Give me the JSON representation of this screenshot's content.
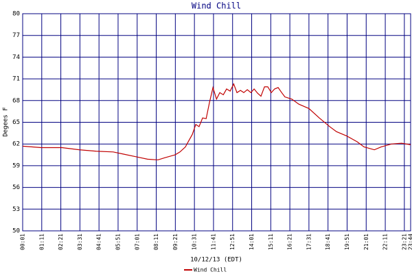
{
  "chart_data": {
    "type": "line",
    "title": "Wind Chill",
    "x_label": "10/12/13 (EDT)",
    "y_label": "Degees F",
    "xlim": [
      1,
      1424
    ],
    "ylim": [
      50,
      80
    ],
    "yticks": [
      50,
      53,
      56,
      59,
      62,
      65,
      68,
      71,
      74,
      77,
      80
    ],
    "xticks": [
      {
        "value": 1,
        "label": "00:01"
      },
      {
        "value": 71,
        "label": "01:11"
      },
      {
        "value": 141,
        "label": "02:21"
      },
      {
        "value": 211,
        "label": "03:31"
      },
      {
        "value": 281,
        "label": "04:41"
      },
      {
        "value": 351,
        "label": "05:51"
      },
      {
        "value": 421,
        "label": "07:01"
      },
      {
        "value": 491,
        "label": "08:11"
      },
      {
        "value": 561,
        "label": "09:21"
      },
      {
        "value": 631,
        "label": "10:31"
      },
      {
        "value": 701,
        "label": "11:41"
      },
      {
        "value": 771,
        "label": "12:51"
      },
      {
        "value": 841,
        "label": "14:01"
      },
      {
        "value": 911,
        "label": "15:11"
      },
      {
        "value": 981,
        "label": "16:21"
      },
      {
        "value": 1051,
        "label": "17:31"
      },
      {
        "value": 1121,
        "label": "18:41"
      },
      {
        "value": 1191,
        "label": "19:51"
      },
      {
        "value": 1261,
        "label": "21:01"
      },
      {
        "value": 1331,
        "label": "22:11"
      },
      {
        "value": 1401,
        "label": "23:21"
      },
      {
        "value": 1424,
        "label": "23:44"
      }
    ],
    "grid": true,
    "grid_color": "#000080",
    "x": [
      1,
      69,
      145,
      208,
      271,
      333,
      371,
      421,
      459,
      497,
      522,
      560,
      578,
      598,
      611,
      623,
      636,
      648,
      661,
      674,
      686,
      699,
      712,
      724,
      737,
      749,
      762,
      775,
      787,
      800,
      812,
      825,
      838,
      850,
      863,
      875,
      888,
      900,
      913,
      925,
      938,
      951,
      963,
      988,
      1014,
      1051,
      1089,
      1127,
      1152,
      1190,
      1228,
      1253,
      1291,
      1316,
      1354,
      1391,
      1424
    ],
    "series": [
      {
        "name": "Wind Chill",
        "color": "#c00000",
        "values": [
          61.7,
          61.5,
          61.5,
          61.2,
          61.0,
          60.9,
          60.6,
          60.2,
          59.9,
          59.8,
          60.1,
          60.5,
          60.9,
          61.6,
          62.5,
          63.3,
          64.7,
          64.4,
          65.6,
          65.5,
          67.7,
          69.8,
          68.2,
          69.1,
          68.8,
          69.6,
          69.3,
          70.3,
          69.1,
          69.4,
          69.1,
          69.5,
          69.1,
          69.6,
          69.0,
          68.6,
          69.9,
          69.9,
          69.1,
          69.6,
          69.8,
          69.1,
          68.5,
          68.2,
          67.5,
          66.9,
          65.6,
          64.4,
          63.7,
          63.1,
          62.3,
          61.6,
          61.2,
          61.6,
          62.0,
          62.1,
          61.9
        ]
      }
    ]
  }
}
